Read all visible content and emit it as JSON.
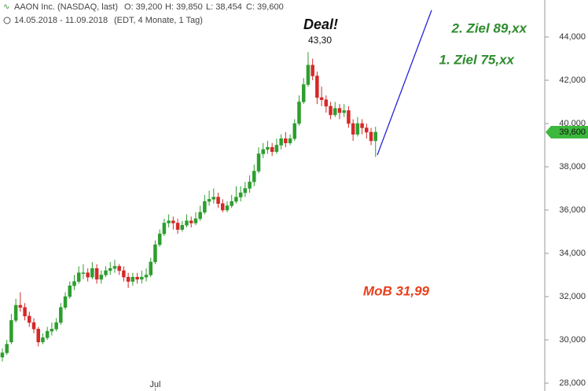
{
  "header": {
    "title": "AAON Inc. (NASDAQ, last)",
    "open": "O: 39,200",
    "high": "H: 39,850",
    "low": "L: 38,454",
    "close": "C: 39,600",
    "range": "14.05.2018 - 11.09.2018",
    "info": "(EDT, 4 Monate, 1 Tag)"
  },
  "chart_data": {
    "type": "candlestick",
    "up_color": "#2e9e2e",
    "down_color": "#d42a2a",
    "ohlc": [
      [
        29.2,
        29.6,
        29.0,
        29.4
      ],
      [
        29.4,
        30.0,
        29.3,
        29.8
      ],
      [
        29.9,
        31.2,
        29.8,
        30.9
      ],
      [
        30.9,
        31.9,
        30.8,
        31.6
      ],
      [
        31.6,
        32.2,
        31.3,
        31.5
      ],
      [
        31.5,
        31.7,
        30.9,
        31.1
      ],
      [
        31.1,
        31.3,
        30.6,
        30.8
      ],
      [
        30.8,
        31.0,
        30.3,
        30.5
      ],
      [
        30.5,
        30.6,
        29.7,
        29.9
      ],
      [
        29.9,
        30.3,
        29.8,
        30.1
      ],
      [
        30.1,
        30.6,
        30.0,
        30.4
      ],
      [
        30.4,
        30.8,
        30.2,
        30.5
      ],
      [
        30.5,
        31.0,
        30.4,
        30.8
      ],
      [
        30.8,
        31.7,
        30.7,
        31.5
      ],
      [
        31.5,
        32.2,
        31.4,
        32.0
      ],
      [
        32.0,
        32.7,
        31.9,
        32.5
      ],
      [
        32.5,
        33.0,
        32.3,
        32.7
      ],
      [
        32.7,
        33.4,
        32.6,
        33.1
      ],
      [
        33.1,
        33.5,
        32.8,
        33.1
      ],
      [
        33.1,
        33.3,
        32.7,
        32.9
      ],
      [
        32.9,
        33.6,
        32.8,
        33.3
      ],
      [
        33.3,
        33.5,
        32.6,
        32.8
      ],
      [
        32.8,
        33.2,
        32.6,
        33.0
      ],
      [
        33.0,
        33.4,
        32.9,
        33.2
      ],
      [
        33.2,
        33.6,
        33.0,
        33.3
      ],
      [
        33.3,
        33.7,
        33.1,
        33.4
      ],
      [
        33.4,
        33.5,
        33.0,
        33.2
      ],
      [
        33.2,
        33.4,
        32.7,
        32.9
      ],
      [
        32.9,
        33.1,
        32.4,
        32.7
      ],
      [
        32.7,
        33.1,
        32.5,
        32.9
      ],
      [
        32.9,
        33.1,
        32.6,
        32.8
      ],
      [
        32.8,
        33.2,
        32.6,
        32.9
      ],
      [
        32.9,
        33.3,
        32.7,
        33.0
      ],
      [
        33.0,
        33.8,
        32.9,
        33.6
      ],
      [
        33.6,
        34.6,
        33.5,
        34.4
      ],
      [
        34.4,
        35.1,
        34.3,
        34.9
      ],
      [
        34.9,
        35.6,
        34.8,
        35.4
      ],
      [
        35.4,
        35.8,
        35.2,
        35.5
      ],
      [
        35.5,
        35.7,
        35.1,
        35.4
      ],
      [
        35.4,
        35.6,
        34.9,
        35.1
      ],
      [
        35.1,
        35.5,
        35.0,
        35.3
      ],
      [
        35.3,
        35.8,
        35.2,
        35.5
      ],
      [
        35.5,
        35.7,
        35.2,
        35.4
      ],
      [
        35.4,
        35.9,
        35.3,
        35.6
      ],
      [
        35.6,
        36.2,
        35.5,
        35.9
      ],
      [
        35.9,
        36.7,
        35.8,
        36.4
      ],
      [
        36.4,
        36.9,
        36.2,
        36.5
      ],
      [
        36.5,
        37.0,
        36.3,
        36.6
      ],
      [
        36.6,
        36.8,
        36.1,
        36.3
      ],
      [
        36.3,
        36.5,
        35.9,
        36.0
      ],
      [
        36.0,
        36.4,
        35.9,
        36.2
      ],
      [
        36.2,
        36.7,
        36.1,
        36.4
      ],
      [
        36.4,
        37.1,
        36.3,
        36.6
      ],
      [
        36.6,
        37.1,
        36.4,
        36.8
      ],
      [
        36.8,
        37.3,
        36.6,
        37.0
      ],
      [
        37.0,
        37.6,
        36.8,
        37.3
      ],
      [
        37.3,
        38.1,
        37.1,
        37.8
      ],
      [
        37.8,
        38.9,
        37.7,
        38.6
      ],
      [
        38.6,
        39.1,
        38.4,
        38.8
      ],
      [
        38.8,
        39.2,
        38.6,
        38.9
      ],
      [
        38.9,
        39.1,
        38.5,
        38.7
      ],
      [
        38.7,
        39.3,
        38.6,
        39.0
      ],
      [
        39.0,
        39.5,
        38.8,
        39.3
      ],
      [
        39.3,
        39.6,
        38.9,
        39.1
      ],
      [
        39.1,
        39.5,
        39.0,
        39.3
      ],
      [
        39.3,
        40.2,
        39.2,
        40.0
      ],
      [
        40.0,
        41.3,
        39.9,
        41.0
      ],
      [
        41.0,
        42.1,
        40.9,
        41.8
      ],
      [
        41.8,
        43.3,
        41.7,
        42.7
      ],
      [
        42.7,
        43.0,
        42.0,
        42.2
      ],
      [
        42.2,
        42.4,
        40.9,
        41.2
      ],
      [
        41.2,
        41.7,
        40.8,
        41.1
      ],
      [
        41.1,
        41.3,
        40.5,
        40.8
      ],
      [
        40.8,
        41.0,
        40.2,
        40.4
      ],
      [
        40.4,
        41.0,
        40.3,
        40.7
      ],
      [
        40.7,
        40.9,
        40.2,
        40.5
      ],
      [
        40.5,
        40.9,
        40.3,
        40.6
      ],
      [
        40.6,
        40.8,
        39.8,
        40.0
      ],
      [
        40.0,
        40.2,
        39.2,
        39.5
      ],
      [
        39.5,
        40.3,
        39.4,
        40.0
      ],
      [
        40.0,
        40.2,
        39.5,
        39.8
      ],
      [
        39.8,
        40.0,
        39.3,
        39.6
      ],
      [
        39.6,
        39.8,
        39.0,
        39.2
      ],
      [
        39.2,
        39.85,
        38.454,
        39.6
      ]
    ],
    "xlim": [
      -0.52,
      120.63
    ],
    "xticks": [
      {
        "value": 34,
        "label": "Jul"
      }
    ],
    "ylim": [
      27.636,
      45.709
    ],
    "yticks": [
      {
        "value": 28,
        "label": "28,000"
      },
      {
        "value": 30,
        "label": "30,000"
      },
      {
        "value": 32,
        "label": "32,000"
      },
      {
        "value": 34,
        "label": "34,000"
      },
      {
        "value": 36,
        "label": "36,000"
      },
      {
        "value": 38,
        "label": "38,000"
      },
      {
        "value": 40,
        "label": "40,000"
      },
      {
        "value": 42,
        "label": "42,000"
      },
      {
        "value": 44,
        "label": "44,000"
      }
    ],
    "last_price": {
      "value": 39.6,
      "label": "39,600"
    },
    "annotations": {
      "deal": "Deal!",
      "high": "43,30",
      "target2": "2. Ziel 89,xx",
      "target1": "1. Ziel 75,xx",
      "mob": "MoB 31,99"
    }
  }
}
